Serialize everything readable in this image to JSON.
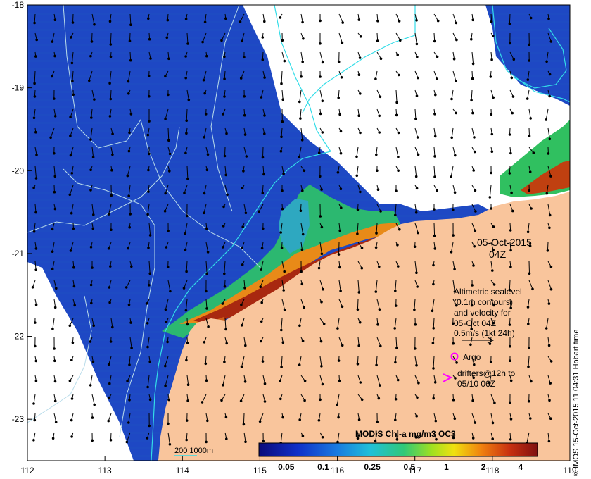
{
  "map": {
    "x_ticks": [
      112,
      113,
      114,
      115,
      116,
      117,
      118,
      119
    ],
    "y_ticks": [
      -18,
      -19,
      -20,
      -21,
      -22,
      -23
    ],
    "lon_range": [
      112,
      119
    ],
    "lat_range": [
      -23.5,
      -18
    ],
    "colors": {
      "land": "#f9c59c",
      "no_data": "#ffffff",
      "contour": "#33dde8",
      "bathymetry": "#cfe8ee",
      "vectors": "#000000",
      "argo": "#ff00ff",
      "drifters": "#ff00ff"
    }
  },
  "date_label": {
    "date": "05-Oct-2015",
    "time": "04Z"
  },
  "legend": {
    "lines": [
      "Altimetric sealevel",
      "(0.1m contours)",
      "and velocity for",
      "05-Oct 04Z",
      "0.5m/s (1kt 24h)"
    ],
    "argo_label": "Argo",
    "drifters_lines": [
      "drifters@12h to",
      "05/10 06Z"
    ]
  },
  "colorbar": {
    "title": "MODIS Chl-a mg/m3 OC3",
    "tick_labels": [
      "0.05",
      "0.1",
      "0.25",
      "0.5",
      "1",
      "2",
      "4"
    ],
    "tick_values": [
      0.05,
      0.1,
      0.25,
      0.5,
      1,
      2,
      4
    ],
    "range": [
      0.03,
      5.5
    ],
    "scale": "log"
  },
  "bathymetry_label": "200  1000m",
  "credit": "© IMOS 15-Oct-2015 11:04:31 Hobart time"
}
